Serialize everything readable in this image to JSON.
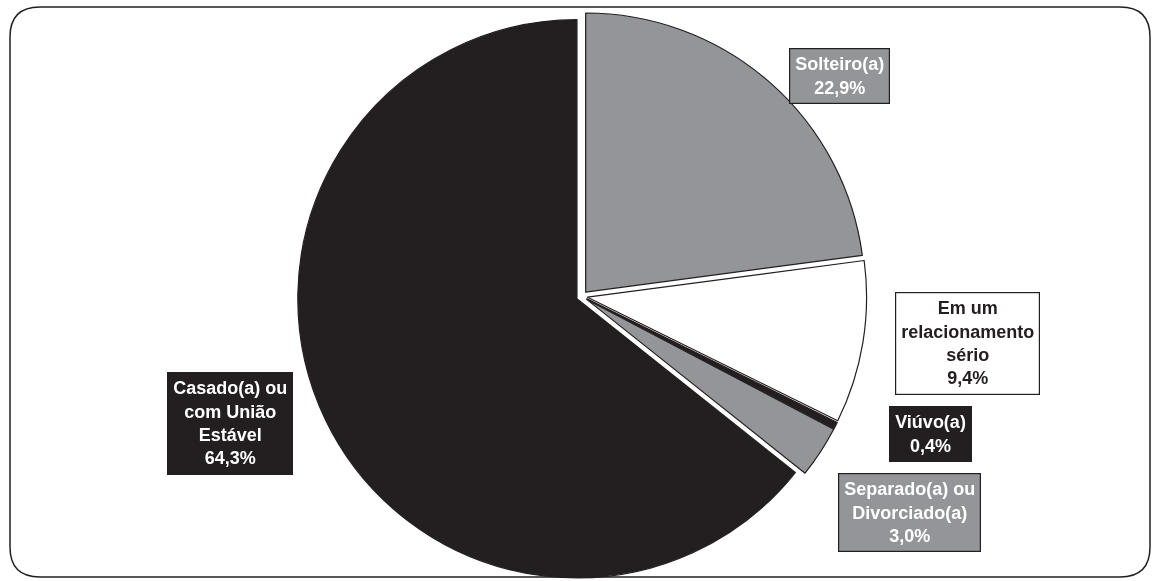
{
  "chart_data": {
    "type": "pie",
    "categories": [
      "Solteiro(a)",
      "Em um relacionamento sério",
      "Viúvo(a)",
      "Separado(a) ou Divorciado(a)",
      "Casado(a) ou com União Estável"
    ],
    "values": [
      22.9,
      9.4,
      0.4,
      3.0,
      64.3
    ],
    "value_labels": [
      "22,9%",
      "9,4%",
      "0,4%",
      "3,0%",
      "64,3%"
    ],
    "colors": [
      "#939598",
      "#ffffff",
      "#231f20",
      "#939598",
      "#231f20"
    ]
  }
}
